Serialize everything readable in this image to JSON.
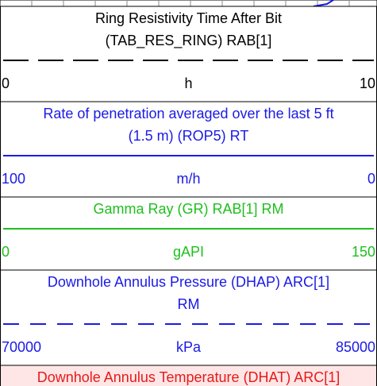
{
  "sections": [
    {
      "title": [
        "Ring Resistivity Time After Bit",
        "(TAB_RES_RING) RAB[1]"
      ],
      "color": "#000000",
      "line": "dashed",
      "left": 0,
      "unit": "h",
      "right": 10
    },
    {
      "title": [
        "Rate of penetration averaged over the last 5 ft",
        "(1.5 m) (ROP5) RT"
      ],
      "color": "#1a1ae6",
      "line": "solid",
      "left": 100,
      "unit": "m/h",
      "right": 0
    },
    {
      "title": [
        "Gamma Ray (GR) RAB[1] RM"
      ],
      "color": "#1fbf1f",
      "line": "solid",
      "left": 0,
      "unit": "gAPI",
      "right": 150
    },
    {
      "title": [
        "Downhole Annulus Pressure (DHAP) ARC[1]",
        "RM"
      ],
      "color": "#1a1ae6",
      "line": "dashed",
      "left": 70000,
      "unit": "kPa",
      "right": 85000
    },
    {
      "title": [
        "Downhole Annulus Temperature (DHAT) ARC[1]"
      ],
      "color": "#e61a1a"
    }
  ]
}
